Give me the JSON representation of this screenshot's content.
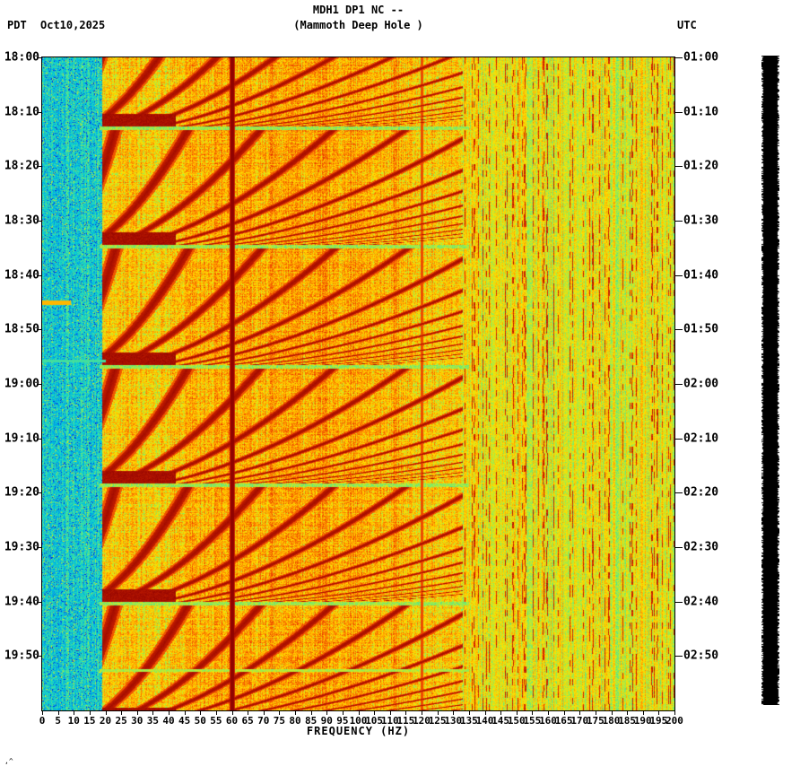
{
  "header": {
    "tz_left": "PDT",
    "date": "Oct10,2025",
    "title_line1": "MDH1 DP1 NC --",
    "title_line2": "(Mammoth Deep Hole )",
    "tz_right": "UTC"
  },
  "chart_data": {
    "type": "heatmap",
    "subtype": "seismic-spectrogram",
    "title": "MDH1 DP1 NC -- (Mammoth Deep Hole )",
    "xlabel": "FREQUENCY (HZ)",
    "x_range": [
      0,
      200
    ],
    "x_tick_step": 5,
    "x_ticks": [
      0,
      5,
      10,
      15,
      20,
      25,
      30,
      35,
      40,
      45,
      50,
      55,
      60,
      65,
      70,
      75,
      80,
      85,
      90,
      95,
      100,
      105,
      110,
      115,
      120,
      125,
      130,
      135,
      140,
      145,
      150,
      155,
      160,
      165,
      170,
      175,
      180,
      185,
      190,
      195,
      200
    ],
    "time_axis_left_tz": "PDT",
    "time_axis_right_tz": "UTC",
    "left_time_labels": [
      "18:00",
      "18:10",
      "18:20",
      "18:30",
      "18:40",
      "18:50",
      "19:00",
      "19:10",
      "19:20",
      "19:30",
      "19:40",
      "19:50"
    ],
    "right_time_labels": [
      "01:00",
      "01:10",
      "01:20",
      "01:30",
      "01:40",
      "01:50",
      "02:00",
      "02:10",
      "02:20",
      "02:30",
      "02:40",
      "02:50"
    ],
    "duration_minutes": 120,
    "tick_interval_minutes": 10,
    "notable_features": {
      "mains_hum_line_hz": 60,
      "secondary_line_hz": 120,
      "low_band_cyan_hz": [
        0,
        19
      ],
      "harmonic_fan_band_hz": [
        20,
        133
      ],
      "fan_repeat_minutes": 22,
      "fan_event_times_pdt": [
        "18:13",
        "18:35",
        "18:57",
        "19:19",
        "19:40"
      ],
      "striped_band_hz": [
        133,
        200
      ],
      "yellow_streak_time_pdt": "18:45"
    },
    "colormap": [
      "#00008B",
      "#0040FF",
      "#00CCDD",
      "#7FEE66",
      "#FFE400",
      "#FF8C00",
      "#E63000",
      "#8B0000"
    ],
    "legend_position": "none",
    "grid": false
  },
  "amplitude_strip": {
    "color": "#000000"
  },
  "footnote": ",^"
}
